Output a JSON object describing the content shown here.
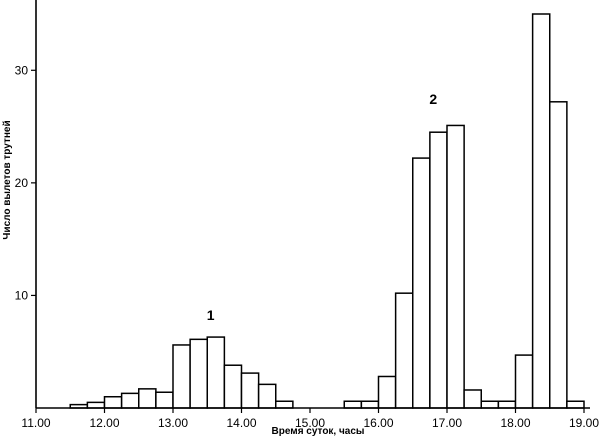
{
  "chart_data": {
    "type": "bar",
    "xlabel": "Время суток, часы",
    "ylabel": "Число вылетов трутней",
    "xlim": [
      11.0,
      19.0
    ],
    "ylim": [
      0,
      35
    ],
    "bin_width": 0.25,
    "x_ticks": [
      11,
      12,
      13,
      14,
      15,
      16,
      17,
      18,
      19
    ],
    "x_tick_labels": [
      "11.00",
      "12.00",
      "13.00",
      "14.00",
      "15.00",
      "16.00",
      "17.00",
      "18.00",
      "19.00"
    ],
    "y_ticks": [
      10,
      20,
      30
    ],
    "y_tick_labels": [
      "10",
      "20",
      "30"
    ],
    "bars": [
      {
        "x": 11.5,
        "value": 0.3
      },
      {
        "x": 11.75,
        "value": 0.5
      },
      {
        "x": 12.0,
        "value": 1.0
      },
      {
        "x": 12.25,
        "value": 1.3
      },
      {
        "x": 12.5,
        "value": 1.7
      },
      {
        "x": 12.75,
        "value": 1.4
      },
      {
        "x": 13.0,
        "value": 5.6
      },
      {
        "x": 13.25,
        "value": 6.1
      },
      {
        "x": 13.5,
        "value": 6.3
      },
      {
        "x": 13.75,
        "value": 3.8
      },
      {
        "x": 14.0,
        "value": 3.1
      },
      {
        "x": 14.25,
        "value": 2.1
      },
      {
        "x": 14.5,
        "value": 0.6
      },
      {
        "x": 15.5,
        "value": 0.6
      },
      {
        "x": 15.75,
        "value": 0.6
      },
      {
        "x": 16.0,
        "value": 2.8
      },
      {
        "x": 16.25,
        "value": 10.2
      },
      {
        "x": 16.5,
        "value": 22.2
      },
      {
        "x": 16.75,
        "value": 24.5
      },
      {
        "x": 17.0,
        "value": 25.1
      },
      {
        "x": 17.25,
        "value": 1.6
      },
      {
        "x": 17.5,
        "value": 0.6
      },
      {
        "x": 17.75,
        "value": 0.6
      },
      {
        "x": 18.0,
        "value": 4.7
      },
      {
        "x": 18.25,
        "value": 35
      },
      {
        "x": 18.5,
        "value": 27.2
      },
      {
        "x": 18.75,
        "value": 0.6
      }
    ],
    "annotations": [
      {
        "text": "1",
        "x": 13.55,
        "y": 7.8
      },
      {
        "text": "2",
        "x": 16.8,
        "y": 27.0
      }
    ]
  }
}
